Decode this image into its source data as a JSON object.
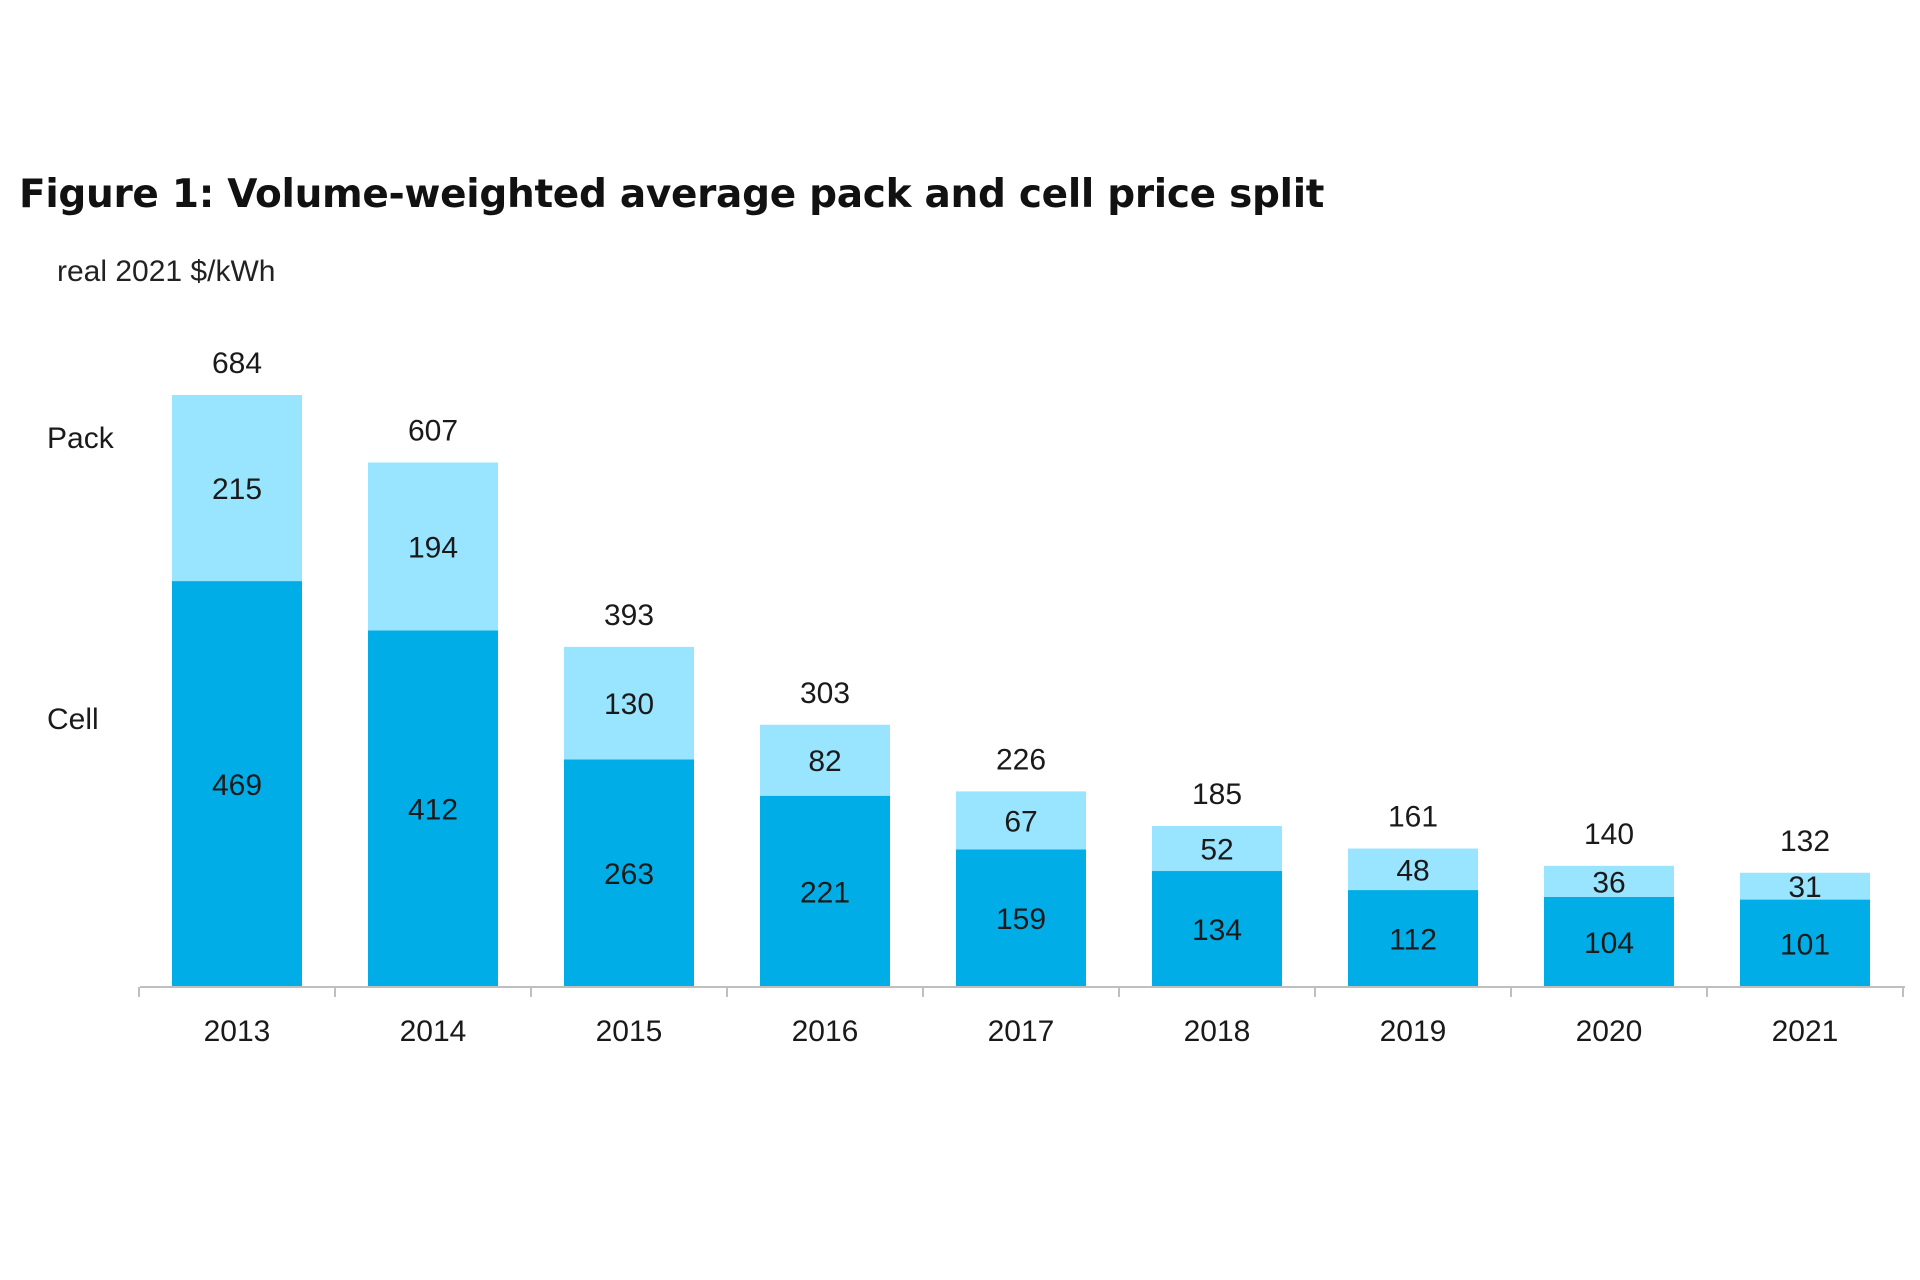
{
  "chart_data": {
    "type": "bar",
    "stacked": true,
    "title": "Figure 1: Volume-weighted average pack and cell price split",
    "ylabel": "real 2021 $/kWh",
    "xlabel": "",
    "categories": [
      "2013",
      "2014",
      "2015",
      "2016",
      "2017",
      "2018",
      "2019",
      "2020",
      "2021"
    ],
    "series": [
      {
        "name": "Cell",
        "values": [
          469,
          412,
          263,
          221,
          159,
          134,
          112,
          104,
          101
        ],
        "color": "#00ade6"
      },
      {
        "name": "Pack",
        "values": [
          215,
          194,
          130,
          82,
          67,
          52,
          48,
          36,
          31
        ],
        "color": "#99e4ff"
      }
    ],
    "totals": [
      684,
      607,
      393,
      303,
      226,
      185,
      161,
      140,
      132
    ],
    "ylim": [
      0,
      684
    ],
    "grid": false,
    "legend": "left, inline labels beside first bar",
    "axis_color": "#bfbfbf"
  }
}
